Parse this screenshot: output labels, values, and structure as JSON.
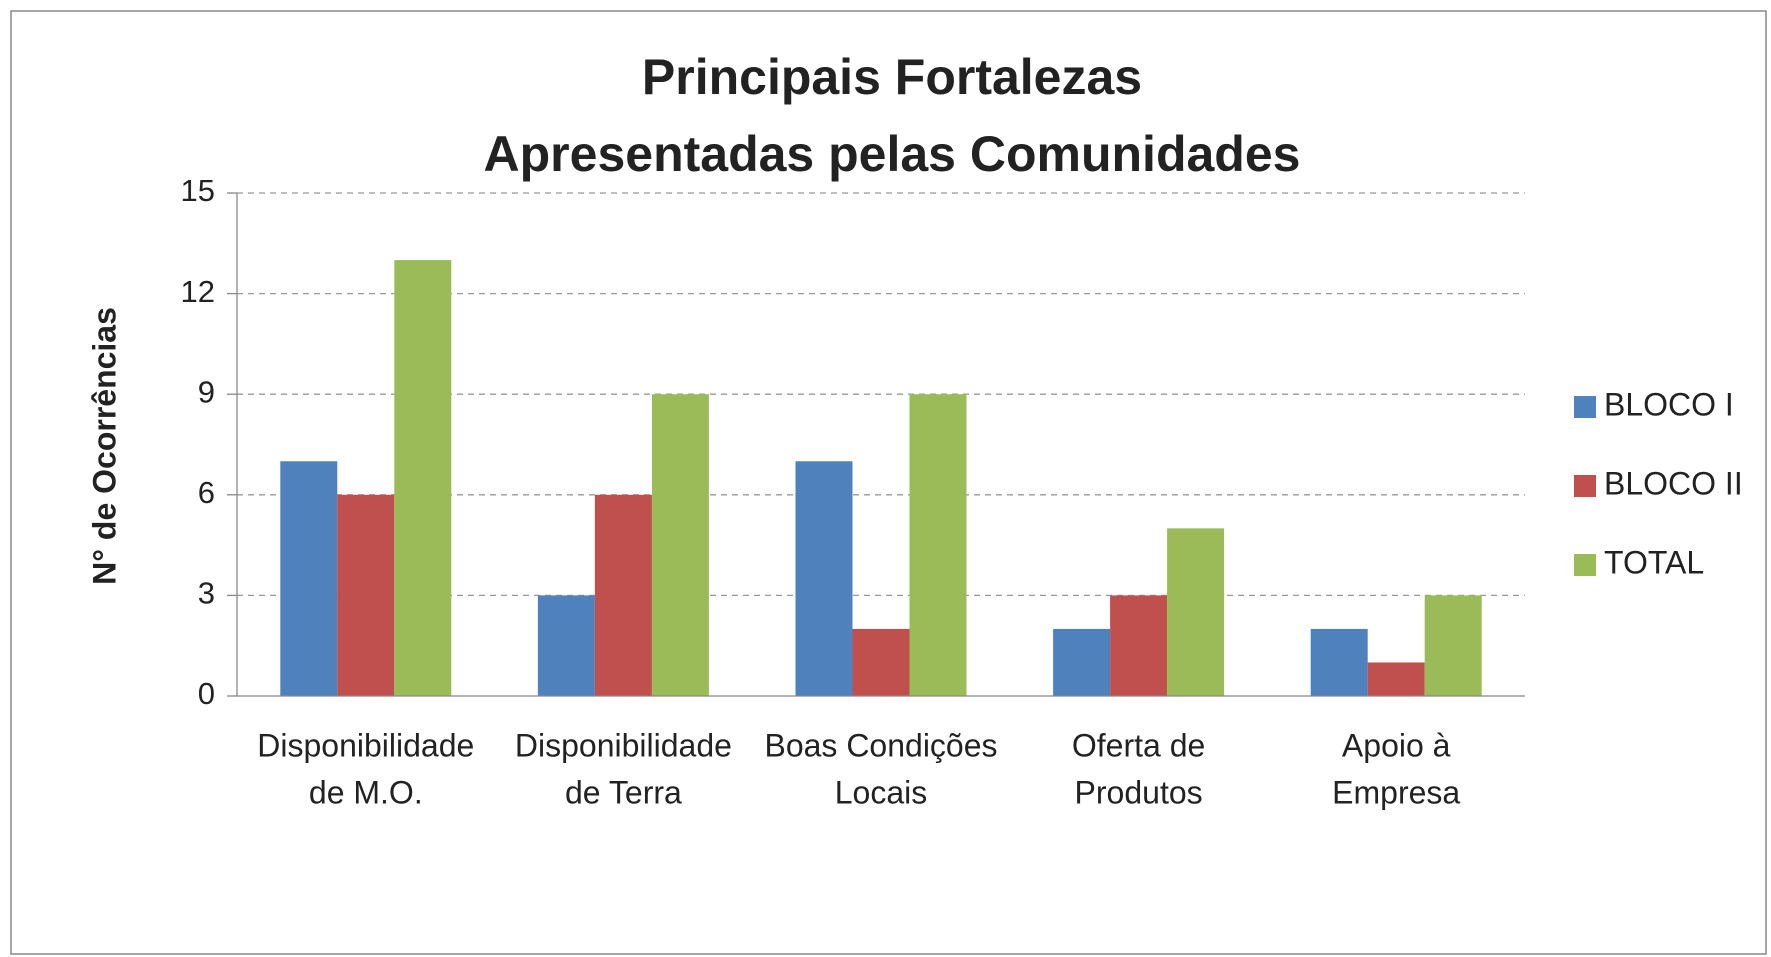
{
  "chart_data": {
    "type": "bar",
    "title": [
      "Principais Fortalezas",
      "Apresentadas pelas Comunidades"
    ],
    "y_label": "N° de Ocorrências",
    "categories": [
      [
        "Disponibilidade",
        "de M.O."
      ],
      [
        "Disponibilidade",
        "de Terra"
      ],
      [
        "Boas Condições",
        "Locais"
      ],
      [
        "Oferta de",
        "Produtos"
      ],
      [
        "Apoio à",
        "Empresa"
      ]
    ],
    "series": [
      {
        "name": "BLOCO I",
        "color": "#4f81bd",
        "values": [
          7,
          3,
          7,
          2,
          2
        ]
      },
      {
        "name": "BLOCO II",
        "color": "#c0504d",
        "values": [
          6,
          6,
          2,
          3,
          1
        ]
      },
      {
        "name": "TOTAL",
        "color": "#9bbb59",
        "values": [
          13,
          9,
          9,
          5,
          3
        ]
      }
    ],
    "ylim": [
      0,
      15
    ],
    "yticks": [
      0,
      3,
      6,
      9,
      12,
      15
    ],
    "grid": true,
    "legend": "right"
  }
}
